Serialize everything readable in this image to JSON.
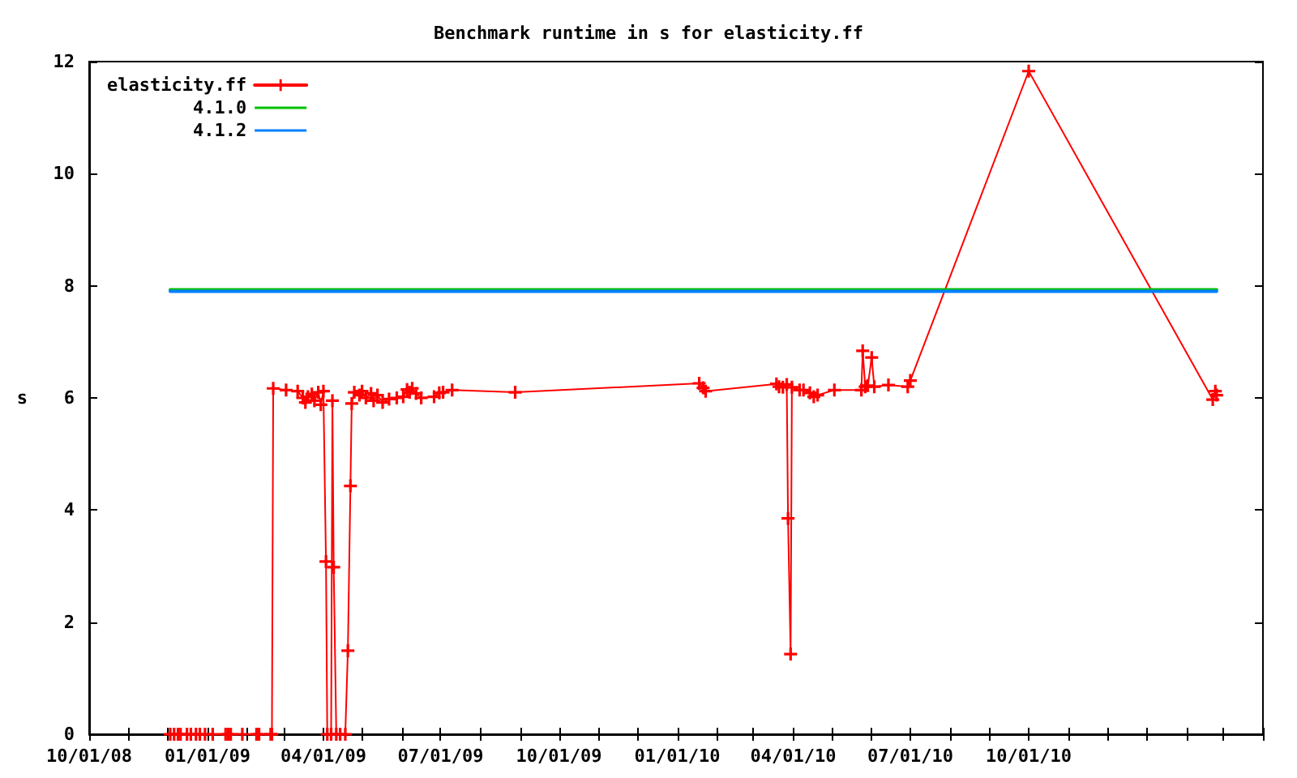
{
  "chart_data": {
    "type": "line",
    "title": "Benchmark runtime in s for elasticity.ff",
    "ylabel": "s",
    "xlim": [
      "2008-10-01",
      "2011-04-01"
    ],
    "xticks": [
      {
        "value": "2008-10-01",
        "label": "10/01/08"
      },
      {
        "value": "2008-11-01",
        "label": null
      },
      {
        "value": "2008-12-01",
        "label": null
      },
      {
        "value": "2009-01-01",
        "label": "01/01/09"
      },
      {
        "value": "2009-02-01",
        "label": null
      },
      {
        "value": "2009-03-01",
        "label": null
      },
      {
        "value": "2009-04-01",
        "label": "04/01/09"
      },
      {
        "value": "2009-05-01",
        "label": null
      },
      {
        "value": "2009-06-01",
        "label": null
      },
      {
        "value": "2009-07-01",
        "label": "07/01/09"
      },
      {
        "value": "2009-08-01",
        "label": null
      },
      {
        "value": "2009-09-01",
        "label": null
      },
      {
        "value": "2009-10-01",
        "label": "10/01/09"
      },
      {
        "value": "2009-11-01",
        "label": null
      },
      {
        "value": "2009-12-01",
        "label": null
      },
      {
        "value": "2010-01-01",
        "label": "01/01/10"
      },
      {
        "value": "2010-02-01",
        "label": null
      },
      {
        "value": "2010-03-01",
        "label": null
      },
      {
        "value": "2010-04-01",
        "label": "04/01/10"
      },
      {
        "value": "2010-05-01",
        "label": null
      },
      {
        "value": "2010-06-01",
        "label": null
      },
      {
        "value": "2010-07-01",
        "label": "07/01/10"
      },
      {
        "value": "2010-08-01",
        "label": null
      },
      {
        "value": "2010-09-01",
        "label": null
      },
      {
        "value": "2010-10-01",
        "label": "10/01/10"
      },
      {
        "value": "2010-11-01",
        "label": null
      },
      {
        "value": "2010-12-01",
        "label": null
      },
      {
        "value": "2011-01-01",
        "label": null
      },
      {
        "value": "2011-02-01",
        "label": null
      },
      {
        "value": "2011-03-01",
        "label": null
      },
      {
        "value": "2011-04-01",
        "label": null
      }
    ],
    "ylim": [
      0,
      12
    ],
    "yticks": [
      0,
      2,
      4,
      6,
      8,
      10,
      12
    ],
    "legend": "top left",
    "marker": "cross",
    "series": [
      {
        "name": "elasticity.ff",
        "color": "#ff0000",
        "x": [
          "2008-12-03",
          "2008-12-06",
          "2008-12-09",
          "2008-12-11",
          "2008-12-16",
          "2008-12-19",
          "2008-12-23",
          "2008-12-26",
          "2008-12-30",
          "2009-01-05",
          "2009-01-15",
          "2009-01-17",
          "2009-01-19",
          "2009-01-28",
          "2009-02-08",
          "2009-02-10",
          "2009-02-19",
          "2009-02-20",
          "2009-02-21",
          "2009-03-03",
          "2009-03-12",
          "2009-03-16",
          "2009-03-18",
          "2009-03-20",
          "2009-03-23",
          "2009-03-25",
          "2009-03-28",
          "2009-03-30",
          "2009-04-01",
          "2009-04-03",
          "2009-04-04",
          "2009-04-07",
          "2009-04-08",
          "2009-04-09",
          "2009-04-11",
          "2009-04-14",
          "2009-04-18",
          "2009-04-20",
          "2009-04-22",
          "2009-04-23",
          "2009-04-25",
          "2009-04-29",
          "2009-05-01",
          "2009-05-04",
          "2009-05-08",
          "2009-05-10",
          "2009-05-13",
          "2009-05-17",
          "2009-05-22",
          "2009-05-28",
          "2009-06-02",
          "2009-06-05",
          "2009-06-07",
          "2009-06-09",
          "2009-06-12",
          "2009-06-16",
          "2009-06-26",
          "2009-06-30",
          "2009-07-03",
          "2009-07-10",
          "2009-08-28",
          "2010-01-18",
          "2010-01-21",
          "2010-01-23",
          "2010-03-19",
          "2010-03-21",
          "2010-03-24",
          "2010-03-27",
          "2010-03-28",
          "2010-03-30",
          "2010-03-31",
          "2010-04-06",
          "2010-04-09",
          "2010-04-14",
          "2010-04-17",
          "2010-04-20",
          "2010-05-03",
          "2010-05-24",
          "2010-05-25",
          "2010-05-27",
          "2010-05-29",
          "2010-06-01",
          "2010-06-03",
          "2010-06-14",
          "2010-06-29",
          "2010-07-01",
          "2010-10-01",
          "2011-02-21",
          "2011-02-23",
          "2011-02-24"
        ],
        "values": [
          0,
          0,
          0,
          0,
          0,
          0,
          0,
          0,
          0,
          0,
          0,
          0,
          0,
          0,
          0,
          0,
          0,
          0,
          6.17,
          6.14,
          6.12,
          6.0,
          5.92,
          6.02,
          6.07,
          5.95,
          6.1,
          5.88,
          6.12,
          3.08,
          0,
          0,
          5.95,
          2.98,
          0,
          0,
          0,
          1.49,
          4.43,
          5.9,
          6.1,
          6.05,
          6.12,
          6.0,
          6.08,
          5.95,
          6.05,
          5.92,
          5.98,
          6.0,
          6.02,
          6.15,
          6.1,
          6.17,
          6.08,
          6.0,
          6.02,
          6.09,
          6.1,
          6.14,
          6.1,
          6.26,
          6.18,
          6.12,
          6.25,
          6.2,
          6.19,
          6.24,
          3.85,
          1.43,
          6.19,
          6.14,
          6.14,
          6.09,
          6.02,
          6.05,
          6.14,
          6.14,
          6.84,
          6.2,
          6.22,
          6.72,
          6.2,
          6.23,
          6.2,
          6.31,
          11.83,
          5.97,
          6.12,
          6.05
        ]
      },
      {
        "name": "4.1.0",
        "color": "#00c000",
        "marker": "none",
        "x": [
          "2008-12-03",
          "2011-02-24"
        ],
        "values": [
          7.93,
          7.93
        ]
      },
      {
        "name": "4.1.2",
        "color": "#0080ff",
        "marker": "none",
        "x": [
          "2008-12-03",
          "2011-02-24"
        ],
        "values": [
          7.9,
          7.9
        ]
      }
    ]
  }
}
